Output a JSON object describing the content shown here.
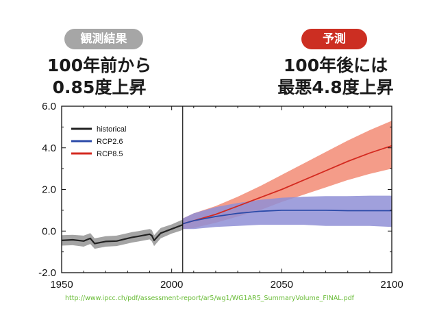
{
  "labels": {
    "observed_badge": "観測結果",
    "forecast_badge": "予測",
    "observed_line1": "100年前から",
    "observed_line2": "0.85度上昇",
    "forecast_line1": "100年後には",
    "forecast_line2": "最悪4.8度上昇"
  },
  "source_url": "http://www.ipcc.ch/pdf/assessment-report/ar5/wg1/WG1AR5_SummaryVolume_FINAL.pdf",
  "colors": {
    "historical": "#222222",
    "historical_band": "#9a9a9a",
    "rcp26": "#2b4aa8",
    "rcp26_band": "#8f8fd6",
    "rcp85": "#d42a20",
    "rcp85_band": "#f28b74",
    "badge_obs": "#a6a6a6",
    "badge_pred": "#cc2e22",
    "link": "#66bb33"
  },
  "chart_data": {
    "type": "line",
    "xlim": [
      1950,
      2100
    ],
    "ylim": [
      -2.0,
      6.0
    ],
    "x_ticks": [
      1950,
      2000,
      2050,
      2100
    ],
    "x_tick_labels": [
      "1950",
      "2000",
      "2050",
      "2100"
    ],
    "y_ticks": [
      -2.0,
      0.0,
      2.0,
      4.0,
      6.0
    ],
    "y_tick_labels": [
      "-2.0",
      "0.0",
      "2.0",
      "4.0",
      "6.0"
    ],
    "divider_year": 2005,
    "legend_position": "top-left",
    "series": [
      {
        "name": "historical",
        "x": [
          1950,
          1955,
          1960,
          1963,
          1965,
          1970,
          1975,
          1980,
          1982,
          1985,
          1990,
          1991,
          1992,
          1995,
          2000,
          2005
        ],
        "y": [
          -0.45,
          -0.42,
          -0.48,
          -0.35,
          -0.6,
          -0.5,
          -0.48,
          -0.35,
          -0.3,
          -0.25,
          -0.15,
          -0.22,
          -0.45,
          -0.1,
          0.1,
          0.3
        ],
        "lower": [
          -0.7,
          -0.68,
          -0.75,
          -0.62,
          -0.85,
          -0.75,
          -0.72,
          -0.6,
          -0.55,
          -0.5,
          -0.4,
          -0.5,
          -0.72,
          -0.35,
          -0.12,
          0.05
        ],
        "upper": [
          -0.2,
          -0.18,
          -0.22,
          -0.1,
          -0.35,
          -0.25,
          -0.22,
          -0.1,
          -0.05,
          0.0,
          0.1,
          0.05,
          -0.2,
          0.15,
          0.32,
          0.55
        ]
      },
      {
        "name": "RCP2.6",
        "x": [
          2005,
          2010,
          2020,
          2030,
          2040,
          2050,
          2060,
          2070,
          2080,
          2090,
          2100
        ],
        "y": [
          0.35,
          0.5,
          0.7,
          0.85,
          0.95,
          1.0,
          1.0,
          1.0,
          0.98,
          0.98,
          0.98
        ],
        "lower": [
          0.1,
          0.1,
          0.2,
          0.25,
          0.3,
          0.3,
          0.3,
          0.25,
          0.25,
          0.25,
          0.2
        ],
        "upper": [
          0.6,
          0.85,
          1.15,
          1.35,
          1.5,
          1.6,
          1.65,
          1.68,
          1.68,
          1.7,
          1.7
        ]
      },
      {
        "name": "RCP8.5",
        "x": [
          2005,
          2010,
          2020,
          2030,
          2040,
          2050,
          2060,
          2070,
          2080,
          2090,
          2100
        ],
        "y": [
          0.35,
          0.5,
          0.8,
          1.2,
          1.6,
          2.0,
          2.45,
          2.9,
          3.35,
          3.75,
          4.1
        ],
        "lower": [
          0.1,
          0.15,
          0.4,
          0.7,
          1.0,
          1.4,
          1.75,
          2.1,
          2.45,
          2.75,
          3.0
        ],
        "upper": [
          0.6,
          0.85,
          1.2,
          1.65,
          2.15,
          2.7,
          3.25,
          3.8,
          4.35,
          4.85,
          5.3
        ]
      }
    ]
  }
}
